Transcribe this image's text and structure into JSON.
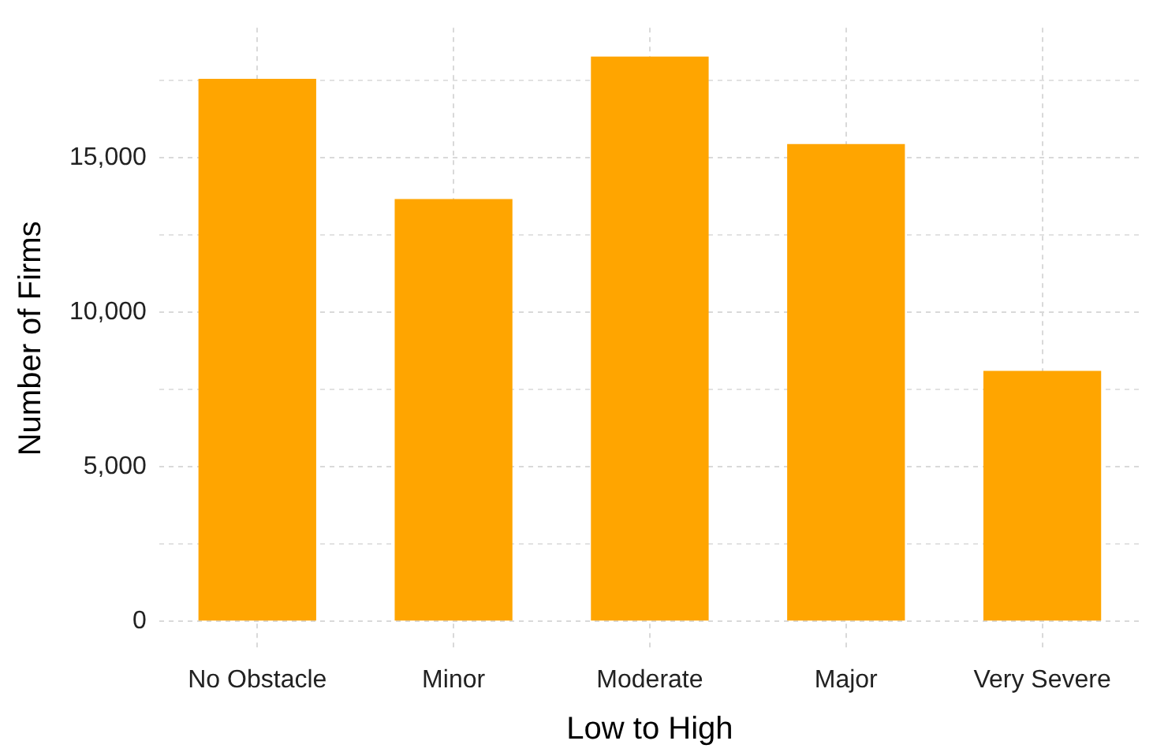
{
  "chart_data": {
    "type": "bar",
    "xlabel": "Low to High",
    "ylabel": "Number of Firms",
    "categories": [
      "No Obstacle",
      "Minor",
      "Moderate",
      "Major",
      "Very Severe"
    ],
    "values": [
      17550,
      13660,
      18270,
      15440,
      8100
    ],
    "color": "#ffa500",
    "ylim": [
      -900,
      19200
    ],
    "yticks": [
      0,
      {
        "value": 2500,
        "label": null
      },
      {
        "value": 5000,
        "label": "5,000"
      },
      {
        "value": 7500,
        "label": null
      },
      {
        "value": 10000,
        "label": "10,000"
      },
      {
        "value": 12500,
        "label": null
      },
      {
        "value": 15000,
        "label": "15,000"
      },
      {
        "value": 17500,
        "label": null
      }
    ],
    "grid": true
  }
}
